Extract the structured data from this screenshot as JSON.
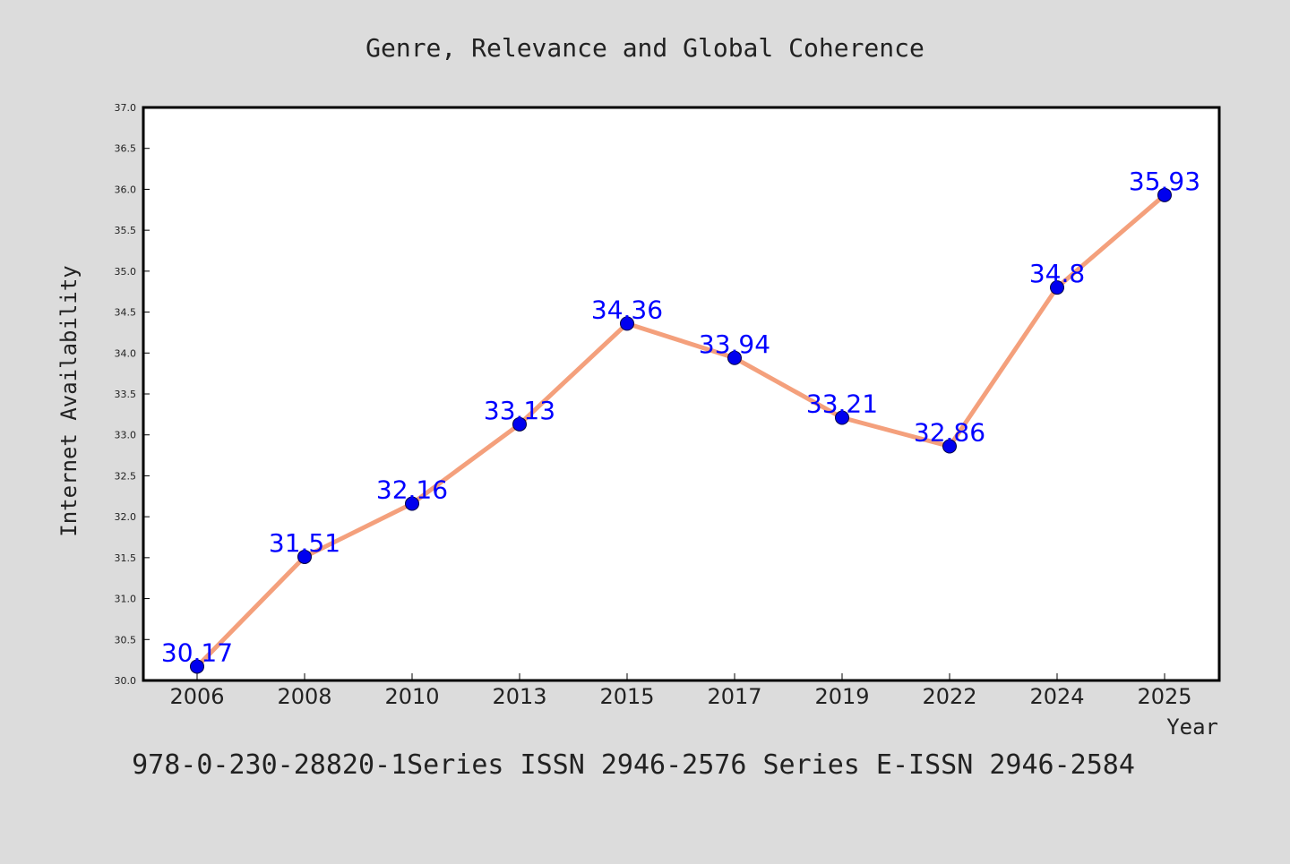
{
  "chart_data": {
    "type": "line",
    "title": "Genre, Relevance and Global Coherence",
    "xlabel": "Year",
    "ylabel": "Internet Availability",
    "categories": [
      "2006",
      "2008",
      "2010",
      "2013",
      "2015",
      "2017",
      "2019",
      "2022",
      "2024",
      "2025"
    ],
    "series": [
      {
        "values": [
          30.17,
          31.51,
          32.16,
          33.13,
          34.36,
          33.94,
          33.21,
          32.86,
          34.8,
          35.93
        ],
        "data_labels": [
          "30.17",
          "31.51",
          "32.16",
          "33.13",
          "34.36",
          "33.94",
          "33.21",
          "32.86",
          "34.8",
          "35.93"
        ]
      }
    ],
    "ylim": [
      30.0,
      37.0
    ],
    "yticks": [
      "30.0",
      "30.5",
      "31.0",
      "31.5",
      "32.0",
      "32.5",
      "33.0",
      "33.5",
      "34.0",
      "34.5",
      "35.0",
      "35.5",
      "36.0",
      "36.5",
      "37.0"
    ],
    "grid": false,
    "footer": "978-0-230-28820-1Series ISSN 2946-2576 Series E-ISSN 2946-2584",
    "colors": {
      "background": "#dcdcdc",
      "plot_background": "#ffffff",
      "line": "#f4a07c",
      "marker": "#0000ee",
      "data_label": "#0000ff",
      "text": "#222222"
    }
  }
}
